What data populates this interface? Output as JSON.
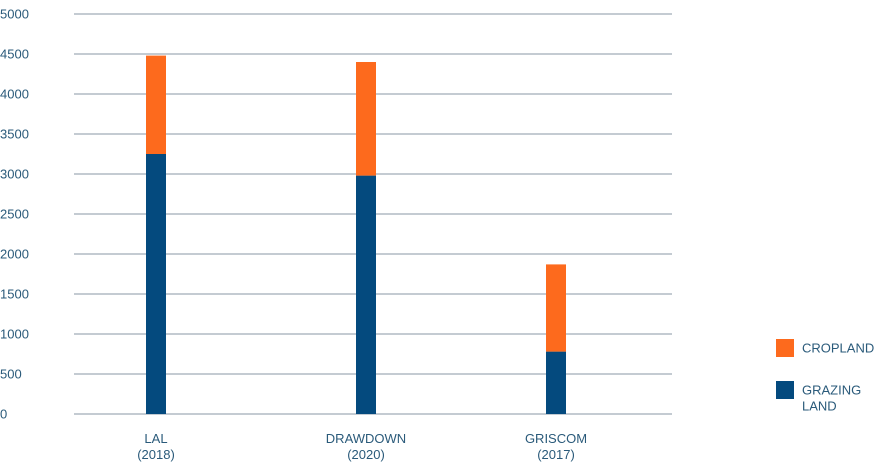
{
  "chart_data": {
    "type": "bar",
    "stacked": true,
    "categories": [
      [
        "LAL",
        "(2018)"
      ],
      [
        "DRAWDOWN",
        "(2020)"
      ],
      [
        "GRISCOM",
        "(2017)"
      ]
    ],
    "series": [
      {
        "name": [
          "GRAZING",
          "LAND"
        ],
        "color": "#044a7e",
        "values": [
          3250,
          2980,
          780
        ]
      },
      {
        "name": [
          "CROPLAND"
        ],
        "color": "#fd6a1d",
        "values": [
          1230,
          1420,
          1090
        ]
      }
    ],
    "ylim": [
      0,
      5000
    ],
    "yticks": [
      "0",
      "500",
      "1000",
      "1500",
      "2000",
      "2500",
      "3000",
      "3500",
      "4000",
      "4500",
      "5000"
    ],
    "grid": true,
    "gridColor": "#8a97a4",
    "legend": {
      "position": "right",
      "order": [
        "CROPLAND",
        "GRAZING LAND"
      ]
    },
    "title": "",
    "xlabel": "",
    "ylabel": ""
  }
}
